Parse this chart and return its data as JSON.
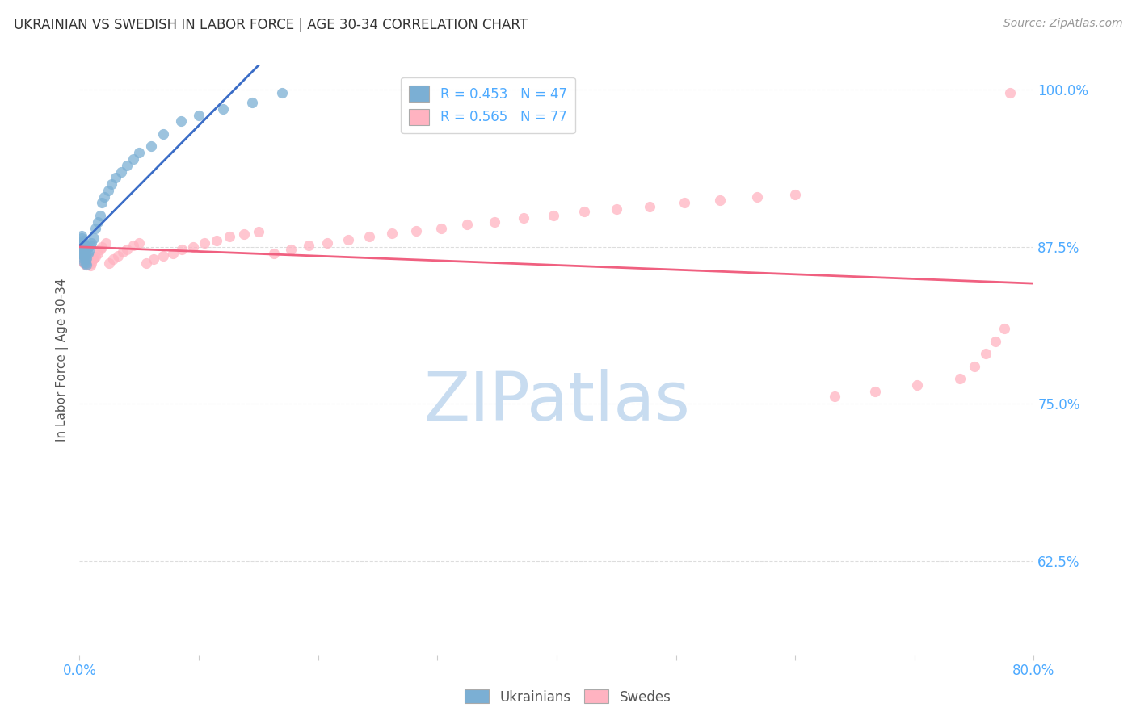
{
  "title": "UKRAINIAN VS SWEDISH IN LABOR FORCE | AGE 30-34 CORRELATION CHART",
  "source": "Source: ZipAtlas.com",
  "ylabel": "In Labor Force | Age 30-34",
  "xlim": [
    0.0,
    0.8
  ],
  "ylim": [
    0.55,
    1.02
  ],
  "xtick_positions": [
    0.0,
    0.1,
    0.2,
    0.3,
    0.4,
    0.5,
    0.6,
    0.7,
    0.8
  ],
  "xticklabels": [
    "0.0%",
    "",
    "",
    "",
    "",
    "",
    "",
    "",
    "80.0%"
  ],
  "ytick_positions": [
    0.625,
    0.75,
    0.875,
    1.0
  ],
  "yticklabels": [
    "62.5%",
    "75.0%",
    "87.5%",
    "100.0%"
  ],
  "ukrainian_R": 0.453,
  "ukrainian_N": 47,
  "swedish_R": 0.565,
  "swedish_N": 77,
  "legend_label_ukrainian": "Ukrainians",
  "legend_label_swedish": "Swedes",
  "color_ukrainian": "#7BAFD4",
  "color_swedish": "#FFB3C1",
  "color_line_ukrainian": "#3B6DC7",
  "color_line_swedish": "#F06080",
  "watermark_text": "ZIPatlas",
  "watermark_color": "#C8DCF0",
  "background_color": "#FFFFFF",
  "grid_color": "#DDDDDD",
  "title_color": "#333333",
  "axis_label_color": "#555555",
  "tick_label_color": "#4DAAFF",
  "source_color": "#999999",
  "ukrainian_x": [
    0.001,
    0.001,
    0.001,
    0.002,
    0.002,
    0.002,
    0.002,
    0.002,
    0.003,
    0.003,
    0.003,
    0.003,
    0.004,
    0.004,
    0.004,
    0.004,
    0.005,
    0.005,
    0.005,
    0.005,
    0.006,
    0.006,
    0.007,
    0.007,
    0.008,
    0.009,
    0.01,
    0.012,
    0.013,
    0.015,
    0.017,
    0.019,
    0.021,
    0.024,
    0.027,
    0.03,
    0.035,
    0.04,
    0.045,
    0.05,
    0.06,
    0.07,
    0.085,
    0.1,
    0.12,
    0.145,
    0.17
  ],
  "ukrainian_y": [
    0.87,
    0.875,
    0.876,
    0.869,
    0.872,
    0.878,
    0.882,
    0.884,
    0.866,
    0.87,
    0.875,
    0.88,
    0.863,
    0.868,
    0.873,
    0.877,
    0.862,
    0.865,
    0.87,
    0.874,
    0.861,
    0.866,
    0.87,
    0.875,
    0.872,
    0.876,
    0.878,
    0.882,
    0.89,
    0.895,
    0.9,
    0.91,
    0.915,
    0.92,
    0.925,
    0.93,
    0.935,
    0.94,
    0.945,
    0.95,
    0.955,
    0.965,
    0.975,
    0.98,
    0.985,
    0.99,
    0.998
  ],
  "swedish_x": [
    0.001,
    0.001,
    0.002,
    0.002,
    0.002,
    0.003,
    0.003,
    0.003,
    0.004,
    0.004,
    0.004,
    0.005,
    0.005,
    0.005,
    0.006,
    0.006,
    0.007,
    0.007,
    0.008,
    0.008,
    0.009,
    0.009,
    0.01,
    0.011,
    0.012,
    0.013,
    0.015,
    0.017,
    0.019,
    0.022,
    0.025,
    0.028,
    0.032,
    0.036,
    0.04,
    0.045,
    0.05,
    0.056,
    0.062,
    0.07,
    0.078,
    0.086,
    0.095,
    0.105,
    0.115,
    0.126,
    0.138,
    0.15,
    0.163,
    0.177,
    0.192,
    0.208,
    0.225,
    0.243,
    0.262,
    0.282,
    0.303,
    0.325,
    0.348,
    0.372,
    0.397,
    0.423,
    0.45,
    0.478,
    0.507,
    0.537,
    0.568,
    0.6,
    0.633,
    0.667,
    0.702,
    0.738,
    0.75,
    0.76,
    0.768,
    0.775,
    0.78
  ],
  "swedish_y": [
    0.865,
    0.87,
    0.864,
    0.868,
    0.872,
    0.863,
    0.867,
    0.871,
    0.862,
    0.866,
    0.87,
    0.861,
    0.865,
    0.869,
    0.862,
    0.866,
    0.863,
    0.867,
    0.862,
    0.866,
    0.86,
    0.864,
    0.862,
    0.865,
    0.866,
    0.867,
    0.87,
    0.873,
    0.875,
    0.878,
    0.862,
    0.865,
    0.868,
    0.871,
    0.873,
    0.876,
    0.878,
    0.862,
    0.865,
    0.868,
    0.87,
    0.873,
    0.875,
    0.878,
    0.88,
    0.883,
    0.885,
    0.887,
    0.87,
    0.873,
    0.876,
    0.878,
    0.881,
    0.883,
    0.886,
    0.888,
    0.89,
    0.893,
    0.895,
    0.898,
    0.9,
    0.903,
    0.905,
    0.907,
    0.91,
    0.912,
    0.915,
    0.917,
    0.756,
    0.76,
    0.765,
    0.77,
    0.78,
    0.79,
    0.8,
    0.81,
    0.998
  ]
}
